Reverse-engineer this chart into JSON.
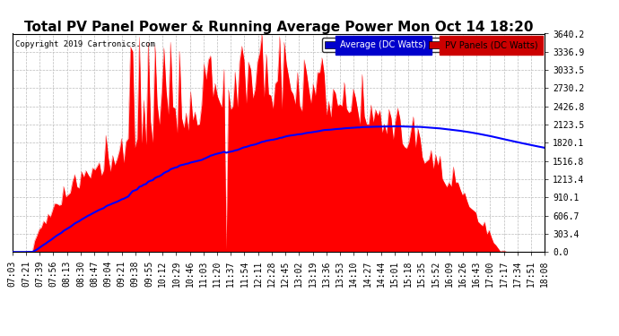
{
  "title": "Total PV Panel Power & Running Average Power Mon Oct 14 18:20",
  "copyright": "Copyright 2019 Cartronics.com",
  "legend_avg_label": "Average (DC Watts)",
  "legend_pv_label": "PV Panels (DC Watts)",
  "legend_avg_bg": "#0000cc",
  "legend_avg_fg": "#ffffff",
  "legend_pv_bg": "#cc0000",
  "legend_pv_fg": "#000000",
  "ymax": 3640.2,
  "ymin": 0.0,
  "yticks": [
    0.0,
    303.4,
    606.7,
    910.1,
    1213.4,
    1516.8,
    1820.1,
    2123.5,
    2426.8,
    2730.2,
    3033.5,
    3336.9,
    3640.2
  ],
  "background_color": "#ffffff",
  "grid_color": "#bbbbbb",
  "pv_color": "#ff0000",
  "avg_color": "#0000ff",
  "title_fontsize": 11,
  "label_fontsize": 7,
  "copyright_fontsize": 6.5,
  "x_labels": [
    "07:03",
    "07:21",
    "07:39",
    "07:56",
    "08:13",
    "08:30",
    "08:47",
    "09:04",
    "09:21",
    "09:38",
    "09:55",
    "10:12",
    "10:29",
    "10:46",
    "11:03",
    "11:20",
    "11:37",
    "11:54",
    "12:11",
    "12:28",
    "12:45",
    "13:02",
    "13:19",
    "13:36",
    "13:53",
    "14:10",
    "14:27",
    "14:44",
    "15:01",
    "15:18",
    "15:35",
    "15:52",
    "16:09",
    "16:26",
    "16:43",
    "17:00",
    "17:17",
    "17:34",
    "17:51",
    "18:08"
  ]
}
